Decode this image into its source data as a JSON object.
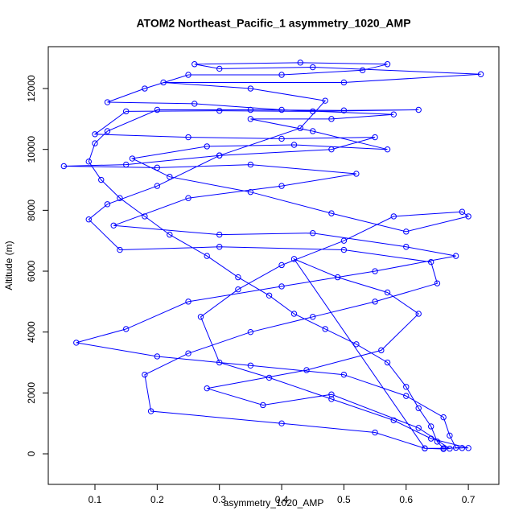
{
  "chart_data": {
    "type": "line",
    "title": "ATOM2 Northeast_Pacific_1 asymmetry_1020_AMP",
    "x_label": "asymmetry_1020_AMP",
    "y_label": "Altitude (m)",
    "color": "#0000ff",
    "markers": true,
    "xlim": [
      0.025,
      0.749
    ],
    "ylim": [
      -1004,
      13375
    ],
    "xticks": [
      0.1,
      0.2,
      0.3,
      0.4,
      0.5,
      0.6,
      0.7
    ],
    "yticks": [
      0,
      2000,
      4000,
      6000,
      8000,
      10000,
      12000
    ],
    "x": [
      0.66,
      0.65,
      0.64,
      0.62,
      0.6,
      0.57,
      0.52,
      0.47,
      0.42,
      0.38,
      0.33,
      0.28,
      0.22,
      0.18,
      0.14,
      0.11,
      0.09,
      0.1,
      0.12,
      0.2,
      0.35,
      0.5,
      0.62,
      0.45,
      0.3,
      0.15,
      0.1,
      0.25,
      0.4,
      0.55,
      0.48,
      0.3,
      0.15,
      0.05,
      0.2,
      0.35,
      0.52,
      0.4,
      0.25,
      0.13,
      0.3,
      0.45,
      0.6,
      0.68,
      0.55,
      0.4,
      0.25,
      0.15,
      0.07,
      0.2,
      0.35,
      0.5,
      0.6,
      0.66,
      0.67,
      0.68,
      0.7,
      0.64,
      0.58,
      0.48,
      0.38,
      0.3,
      0.27,
      0.33,
      0.4,
      0.5,
      0.58,
      0.69,
      0.7,
      0.6,
      0.48,
      0.35,
      0.22,
      0.16,
      0.28,
      0.42,
      0.57,
      0.45,
      0.35,
      0.48,
      0.58,
      0.4,
      0.26,
      0.12,
      0.18,
      0.25,
      0.4,
      0.53,
      0.57,
      0.43,
      0.26,
      0.3,
      0.45,
      0.72,
      0.5,
      0.21,
      0.35,
      0.47,
      0.43,
      0.3,
      0.2,
      0.12,
      0.09,
      0.14,
      0.3,
      0.5,
      0.64,
      0.65,
      0.55,
      0.45,
      0.35,
      0.25,
      0.18,
      0.19,
      0.4,
      0.55,
      0.63,
      0.66,
      0.67,
      0.62,
      0.48,
      0.37,
      0.28,
      0.44,
      0.56,
      0.62,
      0.57,
      0.49,
      0.42,
      0.63,
      0.69
    ],
    "y": [
      180,
      400,
      900,
      1500,
      2200,
      3000,
      3600,
      4100,
      4600,
      5200,
      5800,
      6500,
      7200,
      7800,
      8400,
      9000,
      9600,
      10200,
      10600,
      11300,
      11300,
      11280,
      11300,
      11250,
      11270,
      11250,
      10500,
      10400,
      10350,
      10400,
      10000,
      9800,
      9500,
      9450,
      9400,
      9500,
      9200,
      8800,
      8400,
      7500,
      7200,
      7250,
      6800,
      6500,
      6000,
      5500,
      5000,
      4100,
      3650,
      3200,
      2900,
      2600,
      1900,
      1200,
      600,
      200,
      190,
      500,
      1100,
      1800,
      2500,
      3000,
      4500,
      5400,
      6200,
      7000,
      7800,
      7950,
      7800,
      7300,
      7900,
      8600,
      9100,
      9700,
      10100,
      10150,
      10000,
      10600,
      11000,
      11000,
      11150,
      11300,
      11500,
      11550,
      12000,
      12450,
      12450,
      12600,
      12800,
      12850,
      12800,
      12650,
      12700,
      12470,
      12200,
      12200,
      12000,
      11600,
      10700,
      9800,
      8800,
      8200,
      7700,
      6700,
      6800,
      6700,
      6300,
      5600,
      5000,
      4500,
      4000,
      3300,
      2600,
      1400,
      1000,
      700,
      180,
      160,
      170,
      850,
      1950,
      1600,
      2150,
      2750,
      3400,
      4600,
      5300,
      5800,
      6400,
      180,
      190
    ]
  }
}
